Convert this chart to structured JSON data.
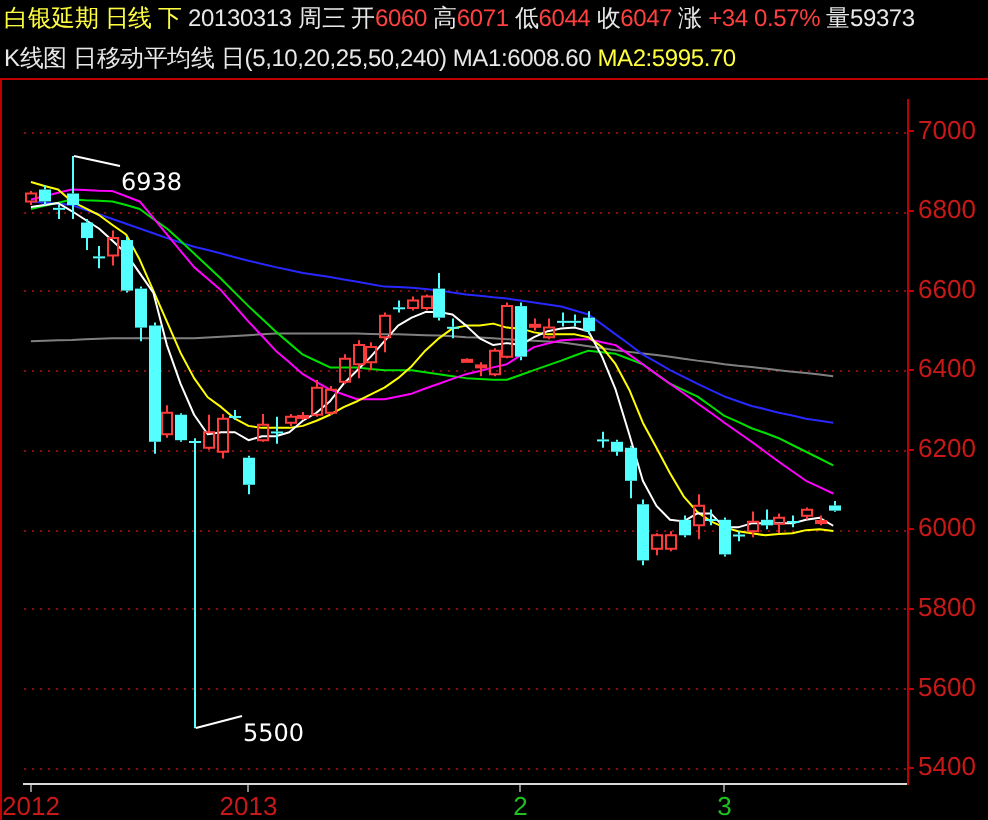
{
  "chart_data": {
    "type": "candlestick",
    "title": "白银延期 日线 下 20130313 周三 开6060 高6071 低6044 收6047 涨 +34 0.57% 量59373",
    "subtitle": "K线图 日移动平均线 日(5,10,20,25,50,240) MA1:6008.60 MA2:5995.70",
    "categories": [
      "2012",
      null,
      null,
      null,
      null,
      null,
      null,
      null,
      null,
      null,
      null,
      null,
      null,
      null,
      null,
      null,
      "2013",
      null,
      null,
      null,
      null,
      null,
      null,
      null,
      null,
      null,
      null,
      null,
      null,
      null,
      null,
      null,
      null,
      null,
      null,
      null,
      "2",
      null,
      null,
      null,
      null,
      null,
      null,
      null,
      null,
      null,
      null,
      null,
      null,
      null,
      null,
      "3",
      null,
      null,
      null,
      null,
      null,
      null,
      null,
      null
    ],
    "ohlc": [
      [
        6824,
        6850,
        6815,
        6844
      ],
      [
        6854,
        6865,
        6815,
        6824
      ],
      [
        6808,
        6815,
        6780,
        6803
      ],
      [
        6844,
        6938,
        6780,
        6815
      ],
      [
        6771,
        6780,
        6702,
        6732
      ],
      [
        6686,
        6712,
        6656,
        6681
      ],
      [
        6688,
        6751,
        6663,
        6732
      ],
      [
        6727,
        6735,
        6595,
        6600
      ],
      [
        6605,
        6610,
        6473,
        6507
      ],
      [
        6512,
        6520,
        6190,
        6220
      ],
      [
        6239,
        6312,
        6230,
        6293
      ],
      [
        6288,
        6292,
        6220,
        6224
      ],
      [
        6222,
        6229,
        5500,
        6218
      ],
      [
        6205,
        6288,
        6200,
        6244
      ],
      [
        6195,
        6290,
        6178,
        6278
      ],
      [
        6285,
        6300,
        6275,
        6281
      ],
      [
        6180,
        6185,
        6088,
        6112
      ],
      [
        6224,
        6290,
        6220,
        6263
      ],
      [
        6246,
        6283,
        6215,
        6242
      ],
      [
        6268,
        6290,
        6260,
        6283
      ],
      [
        6281,
        6295,
        6275,
        6285
      ],
      [
        6288,
        6375,
        6283,
        6356
      ],
      [
        6293,
        6360,
        6288,
        6351
      ],
      [
        6371,
        6440,
        6365,
        6429
      ],
      [
        6415,
        6475,
        6380,
        6463
      ],
      [
        6420,
        6470,
        6400,
        6458
      ],
      [
        6483,
        6545,
        6445,
        6537
      ],
      [
        6558,
        6575,
        6545,
        6554
      ],
      [
        6556,
        6585,
        6550,
        6575
      ],
      [
        6556,
        6590,
        6550,
        6585
      ],
      [
        6605,
        6644,
        6525,
        6532
      ],
      [
        6509,
        6530,
        6480,
        6505
      ],
      [
        6422,
        6430,
        6420,
        6426
      ],
      [
        6408,
        6420,
        6385,
        6412
      ],
      [
        6390,
        6455,
        6385,
        6449
      ],
      [
        6434,
        6570,
        6430,
        6561
      ],
      [
        6561,
        6570,
        6425,
        6434
      ],
      [
        6510,
        6530,
        6500,
        6514
      ],
      [
        6483,
        6530,
        6478,
        6507
      ],
      [
        6524,
        6545,
        6510,
        6520
      ],
      [
        6524,
        6540,
        6510,
        6520
      ],
      [
        6532,
        6548,
        6490,
        6498
      ],
      [
        6226,
        6245,
        6205,
        6222
      ],
      [
        6220,
        6225,
        6185,
        6195
      ],
      [
        6205,
        6210,
        6078,
        6122
      ],
      [
        6063,
        6075,
        5910,
        5922
      ],
      [
        5951,
        5990,
        5935,
        5985
      ],
      [
        5951,
        5995,
        5945,
        5985
      ],
      [
        6024,
        6035,
        5980,
        5985
      ],
      [
        6010,
        6088,
        5975,
        6059
      ],
      [
        6026,
        6050,
        6010,
        6022
      ],
      [
        6024,
        6030,
        5932,
        5937
      ],
      [
        5987,
        5995,
        5970,
        5983
      ],
      [
        5995,
        6045,
        5980,
        6019
      ],
      [
        6024,
        6050,
        6000,
        6010
      ],
      [
        6014,
        6040,
        5990,
        6029
      ],
      [
        6021,
        6035,
        6005,
        6017
      ],
      [
        6034,
        6055,
        6025,
        6049
      ],
      [
        6017,
        6035,
        6010,
        6021
      ],
      [
        6060,
        6071,
        6044,
        6047
      ]
    ],
    "series": [
      {
        "type": "line",
        "color": "#ffffff",
        "values": [
          6810,
          6815,
          6820,
          6800,
          6778,
          6756,
          6725,
          6693,
          6644,
          6595,
          6463,
          6366,
          6288,
          6239,
          6244,
          6244,
          6224,
          6234,
          6234,
          6244,
          6273,
          6293,
          6322,
          6366,
          6400,
          6434,
          6473,
          6512,
          6532,
          6546,
          6546,
          6540,
          6512,
          6480,
          6463,
          6468,
          6463,
          6483,
          6498,
          6505,
          6507,
          6498,
          6434,
          6351,
          6239,
          6122,
          6059,
          6024,
          6020,
          6040,
          6040,
          6005,
          6005,
          6015,
          6015,
          6015,
          6015,
          6024,
          6029,
          6009
        ]
      },
      {
        "type": "line",
        "color": "#ffff00",
        "values": [
          6873,
          6863,
          6854,
          6824,
          6807,
          6790,
          6765,
          6741,
          6678,
          6600,
          6522,
          6444,
          6380,
          6332,
          6307,
          6278,
          6260,
          6255,
          6255,
          6255,
          6260,
          6273,
          6288,
          6307,
          6322,
          6339,
          6356,
          6380,
          6410,
          6449,
          6480,
          6505,
          6512,
          6512,
          6517,
          6507,
          6505,
          6495,
          6490,
          6490,
          6490,
          6483,
          6458,
          6415,
          6351,
          6268,
          6205,
          6141,
          6083,
          6044,
          6020,
          6005,
          5995,
          5990,
          5985,
          5988,
          5990,
          5998,
          6000,
          5996
        ]
      },
      {
        "type": "line",
        "color": "#ff00ff",
        "values": [
          6829,
          6837,
          6846,
          6854,
          6853,
          6851,
          6850,
          6837,
          6824,
          6783,
          6741,
          6700,
          6659,
          6630,
          6600,
          6561,
          6522,
          6486,
          6449,
          6420,
          6390,
          6370,
          6351,
          6339,
          6327,
          6327,
          6327,
          6334,
          6341,
          6354,
          6366,
          6378,
          6390,
          6398,
          6407,
          6415,
          6437,
          6458,
          6467,
          6475,
          6477,
          6478,
          6470,
          6463,
          6439,
          6415,
          6390,
          6366,
          6342,
          6317,
          6293,
          6268,
          6244,
          6220,
          6195,
          6170,
          6146,
          6122,
          6106,
          6090
        ]
      },
      {
        "type": "line",
        "color": "#00e000",
        "values": [
          6805,
          6813,
          6821,
          6829,
          6827,
          6826,
          6824,
          6815,
          6805,
          6780,
          6756,
          6725,
          6693,
          6661,
          6629,
          6595,
          6561,
          6529,
          6497,
          6468,
          6439,
          6423,
          6407,
          6407,
          6407,
          6403,
          6400,
          6400,
          6400,
          6395,
          6390,
          6385,
          6380,
          6378,
          6376,
          6376,
          6388,
          6400,
          6412,
          6424,
          6437,
          6449,
          6445,
          6441,
          6428,
          6415,
          6390,
          6366,
          6350,
          6334,
          6310,
          6285,
          6270,
          6254,
          6242,
          6229,
          6212,
          6195,
          6178,
          6161
        ]
      },
      {
        "type": "line",
        "color": "#2828ff",
        "values": [
          6824,
          6821,
          6818,
          6815,
          6803,
          6792,
          6780,
          6768,
          6756,
          6744,
          6732,
          6721,
          6710,
          6702,
          6693,
          6684,
          6675,
          6667,
          6659,
          6652,
          6644,
          6639,
          6634,
          6628,
          6622,
          6616,
          6610,
          6609,
          6607,
          6604,
          6600,
          6595,
          6590,
          6587,
          6583,
          6580,
          6575,
          6570,
          6565,
          6560,
          6550,
          6540,
          6515,
          6490,
          6465,
          6439,
          6420,
          6400,
          6383,
          6366,
          6350,
          6334,
          6322,
          6310,
          6302,
          6293,
          6286,
          6278,
          6273,
          6268
        ]
      },
      {
        "type": "line",
        "color": "#808080",
        "values": [
          6473,
          6474,
          6475,
          6476,
          6478,
          6479,
          6480,
          6480,
          6480,
          6480,
          6480,
          6480,
          6480,
          6482,
          6484,
          6486,
          6488,
          6490,
          6492,
          6492,
          6492,
          6492,
          6492,
          6492,
          6492,
          6491,
          6490,
          6490,
          6489,
          6488,
          6487,
          6485,
          6483,
          6482,
          6480,
          6478,
          6476,
          6474,
          6472,
          6470,
          6465,
          6460,
          6455,
          6450,
          6446,
          6442,
          6438,
          6434,
          6429,
          6424,
          6420,
          6415,
          6411,
          6408,
          6404,
          6400,
          6396,
          6393,
          6389,
          6385
        ]
      }
    ],
    "annotations": [
      "6938",
      "5500"
    ],
    "ylim": [
      5360,
      7080
    ],
    "yticks": [
      5400,
      5600,
      5800,
      6000,
      6200,
      6400,
      6600,
      6800,
      7000
    ],
    "grid": "y",
    "legend": false
  }
}
